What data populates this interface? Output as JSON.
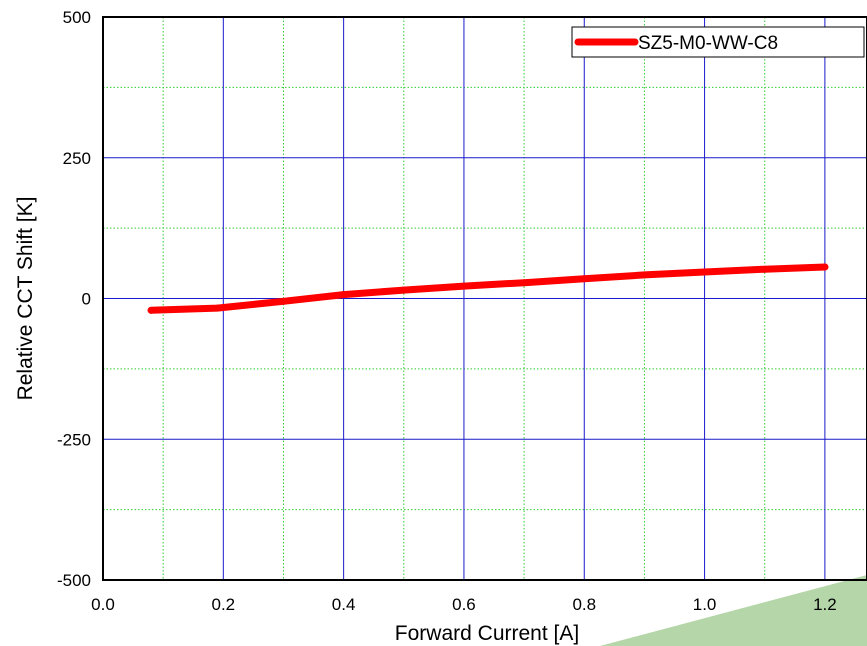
{
  "chart_data": {
    "type": "line",
    "title": "",
    "xlabel": "Forward Current [A]",
    "ylabel": "Relative CCT Shift [K]",
    "xlim": [
      0.0,
      1.27
    ],
    "ylim": [
      -500,
      500
    ],
    "x_ticks": [
      0.0,
      0.2,
      0.4,
      0.6,
      0.8,
      1.0,
      1.2
    ],
    "x_tick_labels": [
      "0.0",
      "0.2",
      "0.4",
      "0.6",
      "0.8",
      "1.0",
      "1.2"
    ],
    "y_ticks": [
      -500,
      -250,
      0,
      250,
      500
    ],
    "y_tick_labels": [
      "-500",
      "-250",
      "0",
      "250",
      "500"
    ],
    "x_minor_ticks": [
      0.1,
      0.3,
      0.5,
      0.7,
      0.9,
      1.1
    ],
    "y_minor_ticks": [
      -375,
      -125,
      125,
      375
    ],
    "grid": true,
    "legend_position": "top-right",
    "series": [
      {
        "name": "SZ5-M0-WW-C8",
        "color": "#ff0000",
        "x": [
          0.08,
          0.19,
          0.3,
          0.4,
          0.5,
          0.6,
          0.7,
          0.8,
          0.9,
          1.0,
          1.1,
          1.2
        ],
        "y": [
          -21,
          -17,
          -5,
          7,
          15,
          22,
          28,
          35,
          42,
          47,
          52,
          56
        ]
      }
    ],
    "colors": {
      "major_grid": "#1a1acc",
      "minor_grid": "#33cc33",
      "frame": "#000000",
      "decoration": "#b5d6a8"
    }
  }
}
